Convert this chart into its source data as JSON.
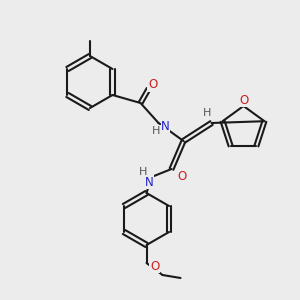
{
  "bg_color": "#ececec",
  "bond_color": "#1a1a1a",
  "atom_colors": {
    "N": "#2020cc",
    "O": "#cc2020",
    "H": "#555555",
    "C": "#1a1a1a"
  },
  "bond_width": 1.5,
  "font_size": 8.5
}
